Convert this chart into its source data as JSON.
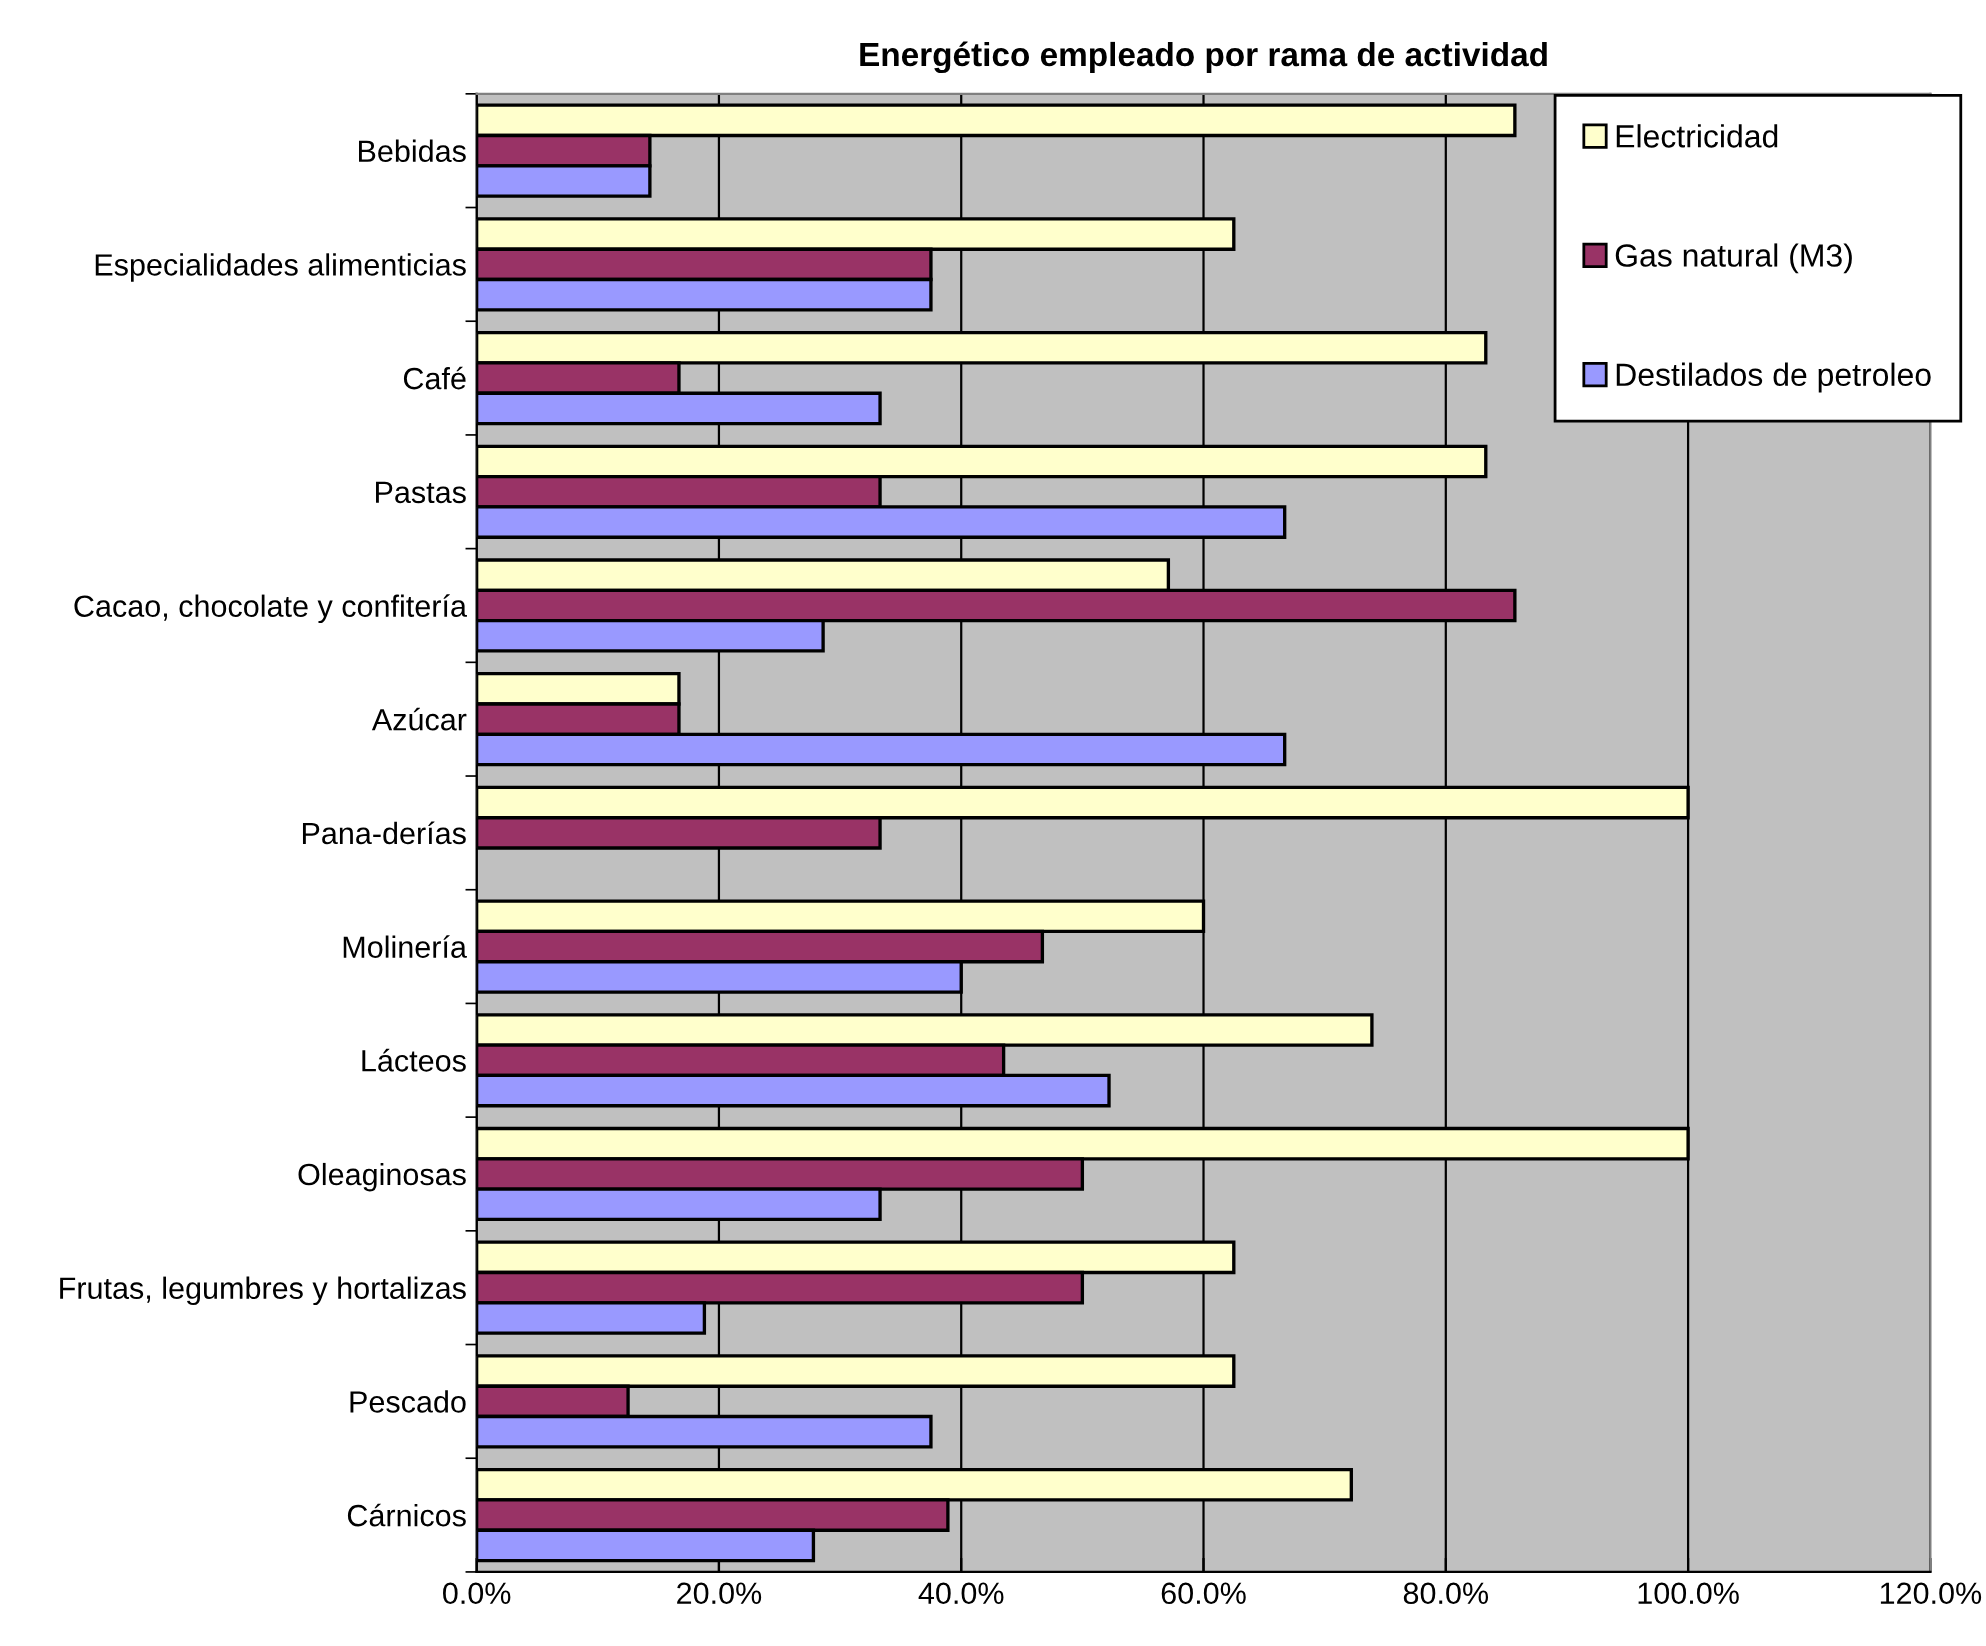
{
  "chart_data": {
    "type": "bar",
    "orientation": "horizontal",
    "title": "Energético empleado por rama de actividad",
    "categories": [
      "Bebidas",
      "Especialidades alimenticias",
      "Café",
      "Pastas",
      "Cacao, chocolate y confitería",
      "Azúcar",
      "Pana-derías",
      "Molinería",
      "Lácteos",
      "Oleaginosas",
      "Frutas, legumbres y hortalizas",
      "Pescado",
      "Cárnicos"
    ],
    "series": [
      {
        "name": "Electricidad",
        "color": "#ffffcc",
        "values": [
          85.7,
          62.5,
          83.3,
          83.3,
          57.1,
          16.7,
          100,
          60,
          73.9,
          100,
          62.5,
          62.5,
          72.2
        ]
      },
      {
        "name": "Gas natural (M3)",
        "color": "#993366",
        "values": [
          14.3,
          37.5,
          16.7,
          33.3,
          85.7,
          16.7,
          33.3,
          46.7,
          43.5,
          50,
          50,
          12.5,
          38.9
        ]
      },
      {
        "name": "Destilados de petroleo",
        "color": "#9999ff",
        "values": [
          14.3,
          37.5,
          33.3,
          66.7,
          28.6,
          66.7,
          null,
          40,
          52.2,
          33.3,
          18.8,
          37.5,
          27.8
        ]
      }
    ],
    "xlim": [
      0,
      120
    ],
    "xticks": [
      {
        "value": 0,
        "label": "0.0%"
      },
      {
        "value": 20,
        "label": "20.0%"
      },
      {
        "value": 40,
        "label": "40.0%"
      },
      {
        "value": 60,
        "label": "60.0%"
      },
      {
        "value": 80,
        "label": "80.0%"
      },
      {
        "value": 100,
        "label": "100.0%"
      },
      {
        "value": 120,
        "label": "120.0%"
      }
    ],
    "grid": "x",
    "legend": "top right"
  }
}
